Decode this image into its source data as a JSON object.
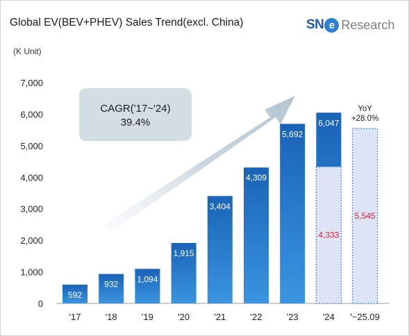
{
  "header": {
    "title": "Global EV(BEV+PHEV) Sales Trend(excl. China)",
    "logo_mark": "SN",
    "logo_e": "e",
    "logo_text": "Research"
  },
  "chart_data": {
    "type": "bar",
    "title": "Global EV(BEV+PHEV) Sales Trend(excl. China)",
    "ylabel": "(K Unit)",
    "xlabel": "",
    "ylim": [
      0,
      7000
    ],
    "yticks": [
      0,
      1000,
      2000,
      3000,
      4000,
      5000,
      6000,
      7000
    ],
    "ytick_labels": [
      "0",
      "1,000",
      "2,000",
      "3,000",
      "4,000",
      "5,000",
      "6,000",
      "7,000"
    ],
    "grid": false,
    "categories": [
      "'17",
      "'18",
      "'19",
      "'20",
      "'21",
      "'22",
      "'23",
      "'24",
      "'~25.09"
    ],
    "series": [
      {
        "values": [
          592,
          932,
          1094,
          1915,
          3404,
          4309,
          5692,
          6047,
          null
        ],
        "labels": [
          "592",
          "932",
          "1,094",
          "1,915",
          "3,404",
          "4,309",
          "5,692",
          "6,047",
          ""
        ],
        "color": "#1f74c7"
      },
      {
        "values": [
          null,
          null,
          null,
          null,
          null,
          null,
          null,
          4333,
          5545
        ],
        "labels": [
          "",
          "",
          "",
          "",
          "",
          "",
          "",
          "4,333",
          "5,545"
        ],
        "color": "#dde4f6",
        "style": "dotted",
        "label_color": "#e0202a"
      }
    ],
    "annotations": {
      "cagr_line1": "CAGR('17~'24)",
      "cagr_line2": "39.4%",
      "yoy_line1": "YoY",
      "yoy_line2": "+28.0%"
    }
  }
}
